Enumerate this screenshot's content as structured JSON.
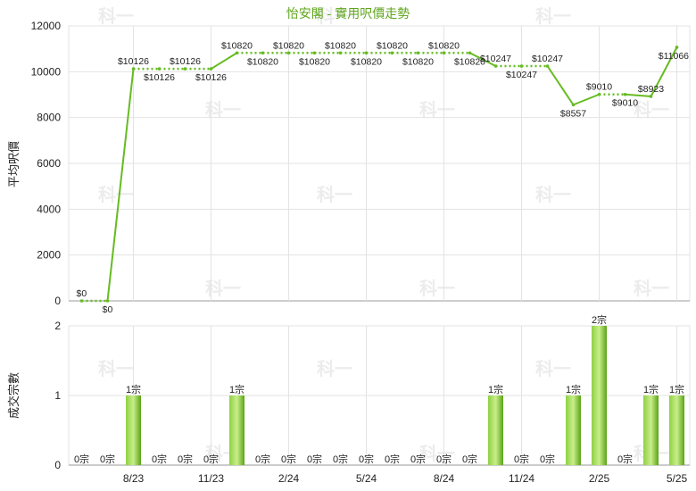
{
  "chart_data": [
    {
      "type": "line",
      "title": "怡安閣 - 實用呎價走勢",
      "ylabel": "平均呎價",
      "ylim": [
        0,
        12000
      ],
      "yticks": [
        0,
        2000,
        4000,
        6000,
        8000,
        10000,
        12000
      ],
      "x_tick_labels": [
        "8/23",
        "11/23",
        "2/24",
        "5/24",
        "8/24",
        "11/24",
        "2/25",
        "5/25"
      ],
      "series": [
        {
          "values": [
            0,
            0,
            10126,
            10126,
            10126,
            10126,
            10820,
            10820,
            10820,
            10820,
            10820,
            10820,
            10820,
            10820,
            10820,
            10820,
            10247,
            10247,
            10247,
            8557,
            9010,
            9010,
            8923,
            11066
          ],
          "labels": [
            "$0",
            "$0",
            "$10126",
            "$10126",
            "$10126",
            "$10126",
            "$10820",
            "$10820",
            "$10820",
            "$10820",
            "$10820",
            "$10820",
            "$10820",
            "$10820",
            "$10820",
            "$10820",
            "$10247",
            "$10247",
            "$10247",
            "$8557",
            "$9010",
            "$9010",
            "$8923",
            "$11066"
          ],
          "color": "#66bb22"
        }
      ],
      "grid": true
    },
    {
      "type": "bar",
      "ylabel": "成交宗數",
      "ylim": [
        0,
        2
      ],
      "yticks": [
        0,
        1,
        2
      ],
      "x_tick_labels": [
        "8/23",
        "11/23",
        "2/24",
        "5/24",
        "8/24",
        "11/24",
        "2/25",
        "5/25"
      ],
      "series": [
        {
          "values": [
            0,
            0,
            1,
            0,
            0,
            0,
            1,
            0,
            0,
            0,
            0,
            0,
            0,
            0,
            0,
            0,
            1,
            0,
            0,
            1,
            2,
            0,
            1,
            1
          ],
          "labels": [
            "0宗",
            "0宗",
            "1宗",
            "0宗",
            "0宗",
            "0宗",
            "1宗",
            "0宗",
            "0宗",
            "0宗",
            "0宗",
            "0宗",
            "0宗",
            "0宗",
            "0宗",
            "0宗",
            "1宗",
            "0宗",
            "0宗",
            "1宗",
            "2宗",
            "0宗",
            "1宗",
            "1宗"
          ],
          "color": "#66bb22"
        }
      ],
      "grid": true
    }
  ],
  "watermark": "科一"
}
